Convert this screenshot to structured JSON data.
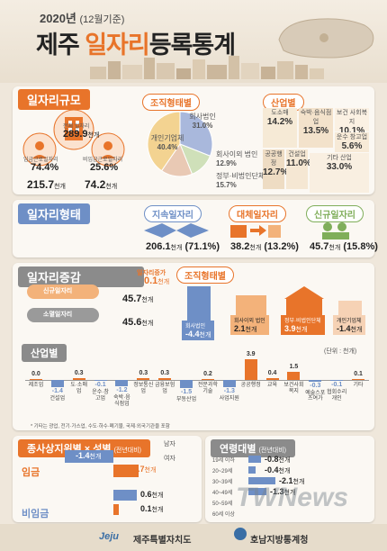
{
  "header": {
    "year": "2020년",
    "year_sub": "(12월기준)",
    "title_pre": "제주",
    "title_hl": "일자리",
    "title_post": "등록통계"
  },
  "scale": {
    "title": "일자리규모",
    "total_label": "전체 일자리",
    "total": "289.9",
    "left_label": "임금근로일자리",
    "left_pct": "74.4%",
    "left_count": "215.7",
    "right_label": "비임금근로일자리",
    "right_pct": "25.6%",
    "right_count": "74.2",
    "unit": "천개"
  },
  "org": {
    "title": "조직형태별",
    "slices": [
      {
        "label": "회사법인",
        "value": 31.0,
        "text": "31.0%",
        "color": "#a9b8dc"
      },
      {
        "label": "회사이외 법인",
        "value": 12.9,
        "text": "12.9%",
        "color": "#cfe0b9"
      },
      {
        "label": "정부·비법인단체",
        "value": 15.7,
        "text": "15.7%",
        "color": "#e9c9b4"
      },
      {
        "label": "개인기업체",
        "value": 40.4,
        "text": "40.4%",
        "color": "#f3d391"
      }
    ]
  },
  "industry_top": {
    "title": "산업별",
    "items": [
      {
        "label": "도소매",
        "value": "14.2%"
      },
      {
        "label": "숙박·음식점업",
        "value": "13.5%"
      },
      {
        "label": "보건 사회복지",
        "value": "10.1%"
      },
      {
        "label": "공공행정",
        "value": "12.7%"
      },
      {
        "label": "건설업",
        "value": "11.0%"
      },
      {
        "label": "기타 산업",
        "value": "33.0%"
      },
      {
        "label": "운수 창고업",
        "value": "5.6%"
      }
    ]
  },
  "forms": {
    "title": "일자리형태",
    "items": [
      {
        "label": "지속일자리",
        "value": "206.1",
        "unit": "천개",
        "pct": "(71.1%)"
      },
      {
        "label": "대체일자리",
        "value": "38.2",
        "unit": "천개",
        "pct": "(13.2%)"
      },
      {
        "label": "신규일자리",
        "value": "45.7",
        "unit": "천개",
        "pct": "(15.8%)"
      }
    ]
  },
  "change": {
    "title": "일자리증감",
    "net_label": "일자리증가",
    "net_value": "0.1",
    "unit": "천개",
    "new_label": "신규일자리",
    "new_value": "45.7",
    "lost_label": "소멸일자리",
    "lost_value": "45.6"
  },
  "org_change": {
    "title": "조직형태별",
    "items": [
      {
        "label": "회사법인",
        "value": "-4.4",
        "unit": "천개"
      },
      {
        "label": "회사이외 법인",
        "value": "2.1",
        "unit": "천개"
      },
      {
        "label": "정부·비법인단체",
        "value": "3.9",
        "unit": "천개"
      },
      {
        "label": "개인기업체",
        "value": "-1.4",
        "unit": "천개"
      }
    ]
  },
  "industry_note": "* 기타는 광업, 전기·가스업, 수도·하수·폐기물, 국제·외국기관을 포함",
  "chart_data": {
    "type": "bar",
    "title": "산업별",
    "unit_label": "(단위 : 천개)",
    "categories": [
      "제조업",
      "건설업",
      "도·소매업",
      "운수·창고업",
      "숙박·음식점업",
      "정보통신업",
      "금융보험업",
      "부동산업",
      "전문과학기술",
      "사업지원",
      "공공행정",
      "교육",
      "보건사회복지",
      "예술스포츠여가",
      "협회수리개인",
      "기타"
    ],
    "values": [
      0.0,
      -1.4,
      0.3,
      -0.1,
      -1.2,
      0.3,
      0.3,
      -1.5,
      0.2,
      -1.3,
      3.9,
      0.4,
      1.5,
      -0.3,
      -0.1,
      0.1
    ],
    "labels": [
      "0.0",
      "-1.4",
      "0.3",
      "-0.1",
      "-1.2",
      "0.3",
      "0.3",
      "-1.5",
      "0.2",
      "-1.3",
      "3.9",
      "0.4",
      "1.5",
      "-0.3",
      "-0.1",
      "0.1"
    ],
    "pos_color": "#e8742a",
    "neg_color": "#6e8fc6"
  },
  "status": {
    "title": "종사상지위별 × 성별",
    "sub": "(전년대비)",
    "male": "남자",
    "female": "여자",
    "wage": "임금",
    "nonwage": "비임금",
    "wage_male": "-1.4",
    "wage_female": "0.7",
    "nonwage_male": "0.6",
    "nonwage_female": "0.1",
    "unit": "천개"
  },
  "age": {
    "title": "연령대별",
    "sub": "(전년대비)",
    "rows": [
      {
        "label": "19세 이하",
        "value": "-0.8",
        "unit": "천개"
      },
      {
        "label": "20~29세",
        "value": "-0.4",
        "unit": "천개"
      },
      {
        "label": "30~39세",
        "value": "-2.1",
        "unit": "천개"
      },
      {
        "label": "40~49세",
        "value": "-1.3",
        "unit": "천개"
      },
      {
        "label": "50~59세",
        "value": "",
        "unit": ""
      },
      {
        "label": "60세 이상",
        "value": "",
        "unit": ""
      }
    ]
  },
  "footer": {
    "logo": "Jeju",
    "org1": "제주특별자치도",
    "org2": "호남지방통계청"
  },
  "watermark": "TWNews"
}
